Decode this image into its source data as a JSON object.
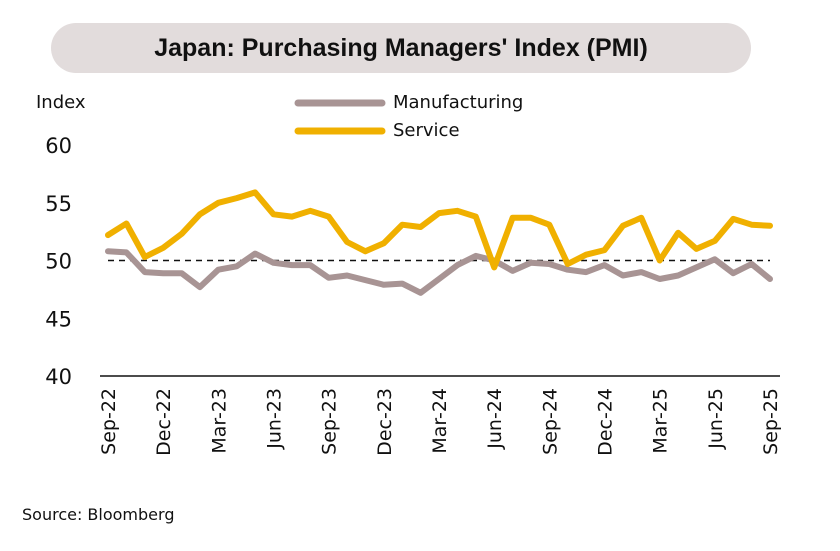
{
  "chart_data": {
    "type": "line",
    "title": "Japan: Purchasing Managers' Index (PMI)",
    "ylabel": "Index",
    "xlabel": "",
    "ylim": [
      40,
      60
    ],
    "yticks": [
      "40",
      "45",
      "50",
      "55",
      "60"
    ],
    "reference_line": 50,
    "x": [
      "Sep-22",
      "Oct-22",
      "Nov-22",
      "Dec-22",
      "Jan-23",
      "Feb-23",
      "Mar-23",
      "Apr-23",
      "May-23",
      "Jun-23",
      "Jul-23",
      "Aug-23",
      "Sep-23",
      "Oct-23",
      "Nov-23",
      "Dec-23",
      "Jan-24",
      "Feb-24",
      "Mar-24",
      "Apr-24",
      "May-24",
      "Jun-24",
      "Jul-24",
      "Aug-24",
      "Sep-24",
      "Oct-24",
      "Nov-24",
      "Dec-24",
      "Jan-25",
      "Feb-25",
      "Mar-25",
      "Apr-25",
      "May-25",
      "Jun-25",
      "Jul-25",
      "Aug-25",
      "Sep-25"
    ],
    "xtick_labels": [
      "Sep-22",
      "Dec-22",
      "Mar-23",
      "Jun-23",
      "Sep-23",
      "Dec-23",
      "Mar-24",
      "Jun-24",
      "Sep-24",
      "Dec-24",
      "Mar-25",
      "Jun-25",
      "Sep-25"
    ],
    "legend_position": "top-center",
    "series": [
      {
        "name": "Manufacturing",
        "color": "#a89494",
        "values": [
          50.8,
          50.7,
          49.0,
          48.9,
          48.9,
          47.7,
          49.2,
          49.5,
          50.6,
          49.8,
          49.6,
          49.6,
          48.5,
          48.7,
          48.3,
          47.9,
          48.0,
          47.2,
          48.4,
          49.6,
          50.4,
          50.0,
          49.1,
          49.8,
          49.7,
          49.2,
          49.0,
          49.6,
          48.7,
          49.0,
          48.4,
          48.7,
          49.4,
          50.1,
          48.9,
          49.7,
          48.4
        ]
      },
      {
        "name": "Service",
        "color": "#f0b000",
        "values": [
          52.2,
          53.2,
          50.3,
          51.1,
          52.3,
          54.0,
          55.0,
          55.4,
          55.9,
          54.0,
          53.8,
          54.3,
          53.8,
          51.6,
          50.8,
          51.5,
          53.1,
          52.9,
          54.1,
          54.3,
          53.8,
          49.4,
          53.7,
          53.7,
          53.1,
          49.7,
          50.5,
          50.9,
          53.0,
          53.7,
          50.0,
          52.4,
          51.0,
          51.7,
          53.6,
          53.1,
          53.0
        ]
      }
    ]
  },
  "source": "Source: Bloomberg"
}
